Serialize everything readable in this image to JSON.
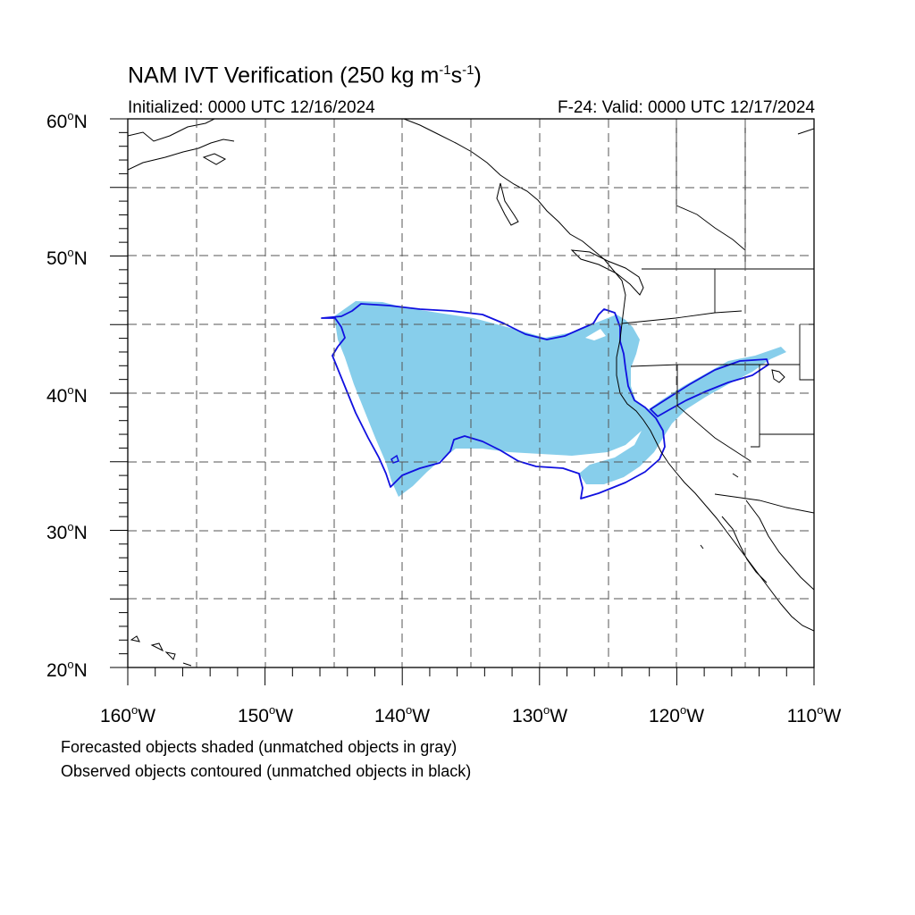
{
  "title": {
    "main": "NAM IVT Verification (250 kg m",
    "exp1": "-1",
    "mid": "s",
    "exp2": "-1",
    "close": ")"
  },
  "subtitle_left": "Initialized: 0000 UTC 12/16/2024",
  "subtitle_right": "F-24: Valid: 0000 UTC 12/17/2024",
  "lat_labels": [
    {
      "deg": "60",
      "hem": "N"
    },
    {
      "deg": "50",
      "hem": "N"
    },
    {
      "deg": "40",
      "hem": "N"
    },
    {
      "deg": "30",
      "hem": "N"
    },
    {
      "deg": "20",
      "hem": "N"
    }
  ],
  "lon_labels": [
    {
      "deg": "160",
      "hem": "W"
    },
    {
      "deg": "150",
      "hem": "W"
    },
    {
      "deg": "140",
      "hem": "W"
    },
    {
      "deg": "130",
      "hem": "W"
    },
    {
      "deg": "120",
      "hem": "W"
    },
    {
      "deg": "110",
      "hem": "W"
    }
  ],
  "notes": [
    "Forecasted objects shaded (unmatched objects in gray)",
    "Observed objects contoured (unmatched objects in black)"
  ],
  "map": {
    "lon_range": [
      -160,
      -110
    ],
    "lat_range": [
      20,
      60
    ],
    "grid_spacing_deg": 5,
    "colors": {
      "forecast_fill": "#87ceeb",
      "observed_contour": "#1010e0",
      "coastline": "#000000",
      "grid": "#555555"
    }
  }
}
